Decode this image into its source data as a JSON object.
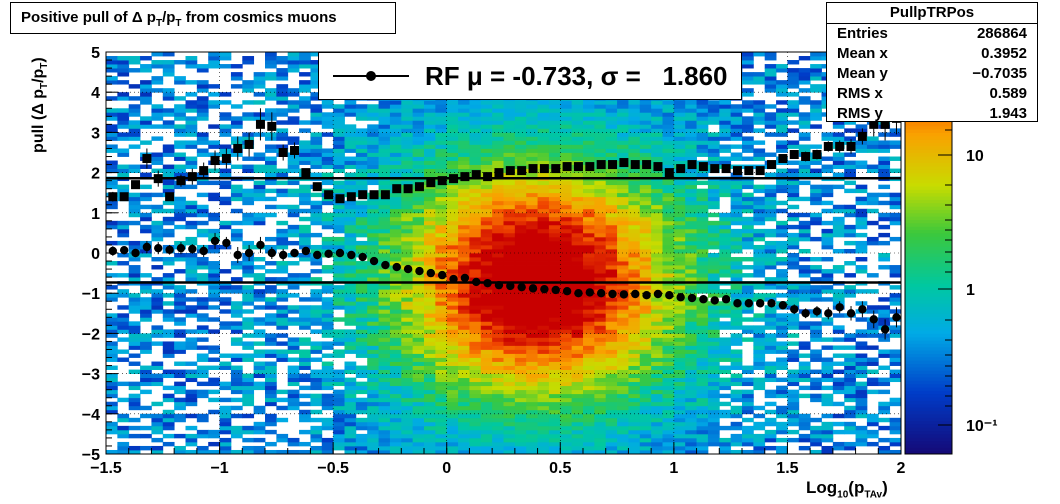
{
  "title": "Positive pull of Δ p",
  "title_parts": {
    "sub1": "T",
    "mid": "/p",
    "sub2": "T",
    "tail": " from cosmics muons"
  },
  "stats": {
    "name": "PullpTRPos",
    "rows": [
      {
        "key": "Entries",
        "value": "286864"
      },
      {
        "key": "Mean x",
        "value": "0.3952"
      },
      {
        "key": "Mean y",
        "value": "−0.7035"
      },
      {
        "key": "RMS x",
        "value": "0.589"
      },
      {
        "key": "RMS y",
        "value": "1.943"
      }
    ]
  },
  "legend": {
    "text": "RF μ = -0.733, σ =   1.860"
  },
  "axes": {
    "ylabel_main": "pull (Δ p",
    "ylabel_sub1": "T",
    "ylabel_mid": "/p",
    "ylabel_sub2": "T",
    "ylabel_tail": ")",
    "xlabel_main": "Log",
    "xlabel_sub1": "10",
    "xlabel_mid": "(p",
    "xlabel_sub2": "TAv",
    "xlabel_tail": ")"
  },
  "chart_data": {
    "type": "heatmap",
    "xlim": [
      -1.5,
      2
    ],
    "ylim": [
      -5,
      5
    ],
    "x_ticks": [
      -1.5,
      -1,
      -0.5,
      0,
      0.5,
      1,
      1.5,
      2
    ],
    "x_tick_labels": [
      "−1.5",
      "−1",
      "−0.5",
      "0",
      "0.5",
      "1",
      "1.5",
      "2"
    ],
    "y_ticks": [
      -5,
      -4,
      -3,
      -2,
      -1,
      0,
      1,
      2,
      3,
      4,
      5
    ],
    "y_tick_labels": [
      "−5",
      "−4",
      "−3",
      "−2",
      "−1",
      "0",
      "1",
      "2",
      "3",
      "4",
      "5"
    ],
    "grid": true,
    "log_z": true,
    "z_tick_labels": [
      "10",
      "1",
      "10⁻¹"
    ],
    "fit_mean_line": -0.733,
    "fit_sigma_line": 1.86,
    "series": [
      {
        "kind": "mean",
        "x": [
          -1.47,
          -1.42,
          -1.37,
          -1.32,
          -1.27,
          -1.22,
          -1.17,
          -1.12,
          -1.07,
          -1.02,
          -0.97,
          -0.92,
          -0.87,
          -0.82,
          -0.77,
          -0.72,
          -0.67,
          -0.62,
          -0.57,
          -0.52,
          -0.47,
          -0.42,
          -0.37,
          -0.32,
          -0.27,
          -0.22,
          -0.17,
          -0.12,
          -0.07,
          -0.02,
          0.03,
          0.08,
          0.13,
          0.18,
          0.23,
          0.28,
          0.33,
          0.38,
          0.43,
          0.48,
          0.53,
          0.58,
          0.63,
          0.68,
          0.73,
          0.78,
          0.83,
          0.88,
          0.93,
          0.98,
          1.03,
          1.08,
          1.13,
          1.18,
          1.23,
          1.28,
          1.33,
          1.38,
          1.43,
          1.48,
          1.53,
          1.58,
          1.63,
          1.68,
          1.73,
          1.78,
          1.83,
          1.88,
          1.93,
          1.98
        ],
        "y": [
          0.05,
          0.07,
          0.0,
          0.15,
          0.12,
          0.08,
          0.12,
          0.1,
          0.05,
          0.3,
          0.25,
          -0.05,
          0.0,
          0.2,
          0.0,
          -0.05,
          0.0,
          0.05,
          -0.05,
          -0.02,
          0.0,
          -0.05,
          -0.1,
          -0.2,
          -0.3,
          -0.35,
          -0.4,
          -0.45,
          -0.5,
          -0.55,
          -0.65,
          -0.62,
          -0.72,
          -0.75,
          -0.8,
          -0.82,
          -0.85,
          -0.88,
          -0.9,
          -0.92,
          -0.95,
          -1.0,
          -0.98,
          -1.0,
          -1.02,
          -1.03,
          -1.02,
          -1.05,
          -1.02,
          -1.05,
          -1.1,
          -1.12,
          -1.15,
          -1.18,
          -1.15,
          -1.25,
          -1.25,
          -1.25,
          -1.25,
          -1.3,
          -1.4,
          -1.5,
          -1.45,
          -1.5,
          -1.35,
          -1.5,
          -1.4,
          -1.65,
          -1.9,
          -1.6
        ],
        "err": [
          0.12,
          0.1,
          0.1,
          0.15,
          0.15,
          0.12,
          0.15,
          0.12,
          0.15,
          0.2,
          0.15,
          0.2,
          0.2,
          0.2,
          0.15,
          0.15,
          0.1,
          0.08,
          0.05,
          0.05,
          0.04,
          0.04,
          0.03,
          0.03,
          0.03,
          0.03,
          0.03,
          0.03,
          0.03,
          0.03,
          0.03,
          0.03,
          0.03,
          0.03,
          0.03,
          0.03,
          0.03,
          0.03,
          0.03,
          0.03,
          0.03,
          0.03,
          0.03,
          0.04,
          0.04,
          0.04,
          0.04,
          0.05,
          0.05,
          0.05,
          0.05,
          0.06,
          0.06,
          0.07,
          0.07,
          0.08,
          0.08,
          0.09,
          0.1,
          0.1,
          0.12,
          0.12,
          0.13,
          0.15,
          0.15,
          0.18,
          0.2,
          0.22,
          0.25,
          0.25
        ]
      },
      {
        "kind": "rms",
        "x": [
          -1.47,
          -1.42,
          -1.37,
          -1.32,
          -1.27,
          -1.22,
          -1.17,
          -1.12,
          -1.07,
          -1.02,
          -0.97,
          -0.92,
          -0.87,
          -0.82,
          -0.77,
          -0.72,
          -0.67,
          -0.62,
          -0.57,
          -0.52,
          -0.47,
          -0.42,
          -0.37,
          -0.32,
          -0.27,
          -0.22,
          -0.17,
          -0.12,
          -0.07,
          -0.02,
          0.03,
          0.08,
          0.13,
          0.18,
          0.23,
          0.28,
          0.33,
          0.38,
          0.43,
          0.48,
          0.53,
          0.58,
          0.63,
          0.68,
          0.73,
          0.78,
          0.83,
          0.88,
          0.93,
          0.98,
          1.03,
          1.08,
          1.13,
          1.18,
          1.23,
          1.28,
          1.33,
          1.38,
          1.43,
          1.48,
          1.53,
          1.58,
          1.63,
          1.68,
          1.73,
          1.78,
          1.83,
          1.88,
          1.93,
          1.98
        ],
        "y": [
          1.4,
          1.4,
          1.7,
          2.35,
          1.85,
          1.4,
          1.8,
          1.9,
          2.05,
          2.3,
          2.35,
          2.6,
          2.7,
          3.2,
          3.15,
          2.5,
          2.55,
          2.0,
          1.65,
          1.45,
          1.35,
          1.4,
          1.45,
          1.45,
          1.45,
          1.6,
          1.6,
          1.65,
          1.75,
          1.8,
          1.85,
          1.9,
          1.95,
          1.9,
          2.0,
          2.05,
          2.05,
          2.1,
          2.1,
          2.1,
          2.15,
          2.15,
          2.15,
          2.2,
          2.2,
          2.25,
          2.2,
          2.2,
          2.15,
          2.0,
          2.1,
          2.2,
          2.15,
          2.1,
          2.1,
          2.05,
          2.05,
          2.05,
          2.2,
          2.35,
          2.45,
          2.4,
          2.45,
          2.65,
          2.65,
          2.65,
          2.9,
          3.2,
          3.2,
          3.35
        ],
        "err": [
          0.12,
          0.1,
          0.1,
          0.25,
          0.2,
          0.1,
          0.15,
          0.2,
          0.2,
          0.25,
          0.25,
          0.3,
          0.3,
          0.4,
          0.35,
          0.2,
          0.2,
          0.1,
          0.06,
          0.05,
          0.04,
          0.04,
          0.03,
          0.03,
          0.03,
          0.03,
          0.03,
          0.03,
          0.03,
          0.03,
          0.03,
          0.03,
          0.03,
          0.03,
          0.03,
          0.03,
          0.03,
          0.03,
          0.03,
          0.03,
          0.03,
          0.03,
          0.03,
          0.03,
          0.04,
          0.04,
          0.04,
          0.04,
          0.05,
          0.05,
          0.05,
          0.05,
          0.06,
          0.06,
          0.07,
          0.07,
          0.08,
          0.08,
          0.09,
          0.1,
          0.1,
          0.12,
          0.12,
          0.13,
          0.15,
          0.18,
          0.2,
          0.3,
          0.4,
          0.4
        ]
      }
    ]
  }
}
